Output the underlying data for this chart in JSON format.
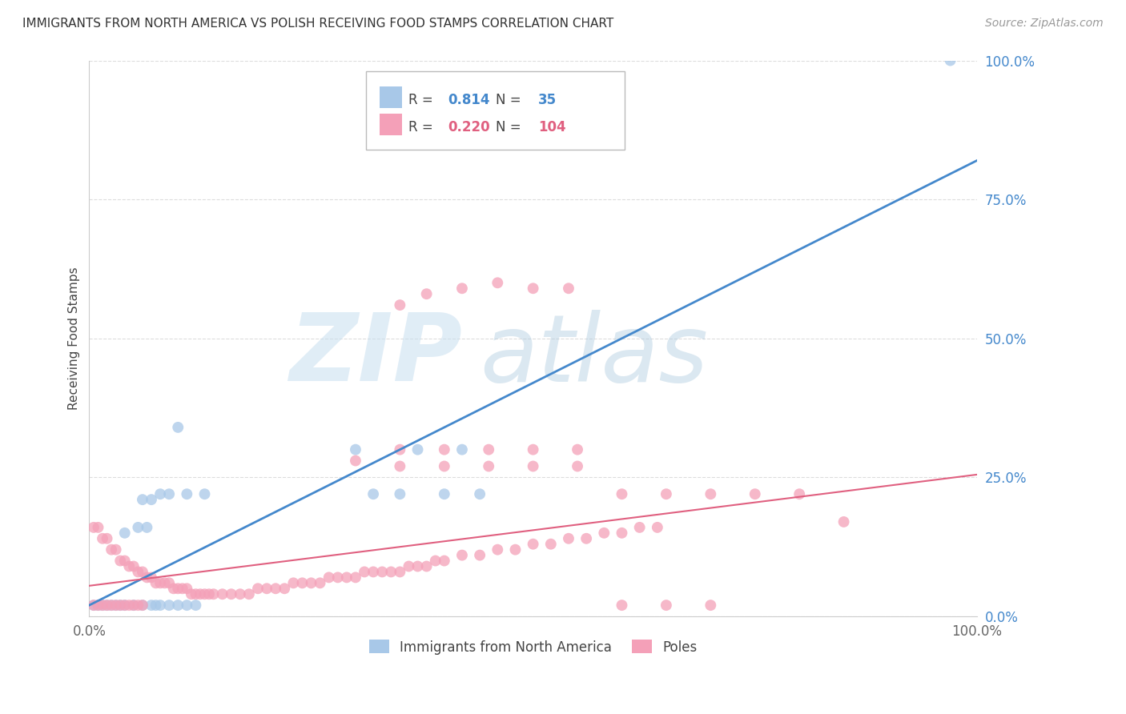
{
  "title": "IMMIGRANTS FROM NORTH AMERICA VS POLISH RECEIVING FOOD STAMPS CORRELATION CHART",
  "source": "Source: ZipAtlas.com",
  "ylabel": "Receiving Food Stamps",
  "series1_label": "Immigrants from North America",
  "series1_color": "#a8c8e8",
  "series1_line_color": "#4488cc",
  "series1_R": "0.814",
  "series1_N": "35",
  "series2_label": "Poles",
  "series2_color": "#f4a0b8",
  "series2_line_color": "#e06080",
  "series2_R": "0.220",
  "series2_N": "104",
  "grid_color": "#dddddd",
  "background_color": "#ffffff",
  "xlim": [
    0,
    1
  ],
  "ylim": [
    0,
    1
  ],
  "yticks": [
    0,
    0.25,
    0.5,
    0.75,
    1.0
  ],
  "ytick_labels": [
    "0.0%",
    "25.0%",
    "50.0%",
    "75.0%",
    "100.0%"
  ],
  "xtick_labels": [
    "0.0%",
    "100.0%"
  ],
  "blue_x": [
    0.005,
    0.01,
    0.015,
    0.02,
    0.025,
    0.03,
    0.035,
    0.04,
    0.04,
    0.05,
    0.055,
    0.06,
    0.065,
    0.07,
    0.075,
    0.08,
    0.09,
    0.1,
    0.11,
    0.12,
    0.06,
    0.07,
    0.08,
    0.09,
    0.1,
    0.11,
    0.13,
    0.3,
    0.32,
    0.35,
    0.37,
    0.4,
    0.42,
    0.44,
    0.97
  ],
  "blue_y": [
    0.02,
    0.02,
    0.02,
    0.02,
    0.02,
    0.02,
    0.02,
    0.02,
    0.15,
    0.02,
    0.16,
    0.02,
    0.16,
    0.02,
    0.02,
    0.02,
    0.02,
    0.02,
    0.02,
    0.02,
    0.21,
    0.21,
    0.22,
    0.22,
    0.34,
    0.22,
    0.22,
    0.3,
    0.22,
    0.22,
    0.3,
    0.22,
    0.3,
    0.22,
    1.0
  ],
  "pink_x": [
    0.005,
    0.005,
    0.01,
    0.01,
    0.015,
    0.015,
    0.02,
    0.02,
    0.025,
    0.025,
    0.03,
    0.03,
    0.035,
    0.035,
    0.04,
    0.04,
    0.045,
    0.045,
    0.05,
    0.05,
    0.055,
    0.055,
    0.06,
    0.06,
    0.065,
    0.07,
    0.075,
    0.08,
    0.085,
    0.09,
    0.095,
    0.1,
    0.105,
    0.11,
    0.115,
    0.12,
    0.125,
    0.13,
    0.135,
    0.14,
    0.15,
    0.16,
    0.17,
    0.18,
    0.19,
    0.2,
    0.21,
    0.22,
    0.23,
    0.24,
    0.25,
    0.26,
    0.27,
    0.28,
    0.29,
    0.3,
    0.31,
    0.32,
    0.33,
    0.34,
    0.35,
    0.36,
    0.37,
    0.38,
    0.39,
    0.4,
    0.42,
    0.44,
    0.46,
    0.48,
    0.5,
    0.52,
    0.54,
    0.56,
    0.58,
    0.6,
    0.62,
    0.64,
    0.3,
    0.35,
    0.4,
    0.45,
    0.5,
    0.55,
    0.35,
    0.38,
    0.42,
    0.46,
    0.5,
    0.54,
    0.6,
    0.65,
    0.7,
    0.75,
    0.8,
    0.85,
    0.35,
    0.4,
    0.45,
    0.5,
    0.55,
    0.6,
    0.65,
    0.7
  ],
  "pink_y": [
    0.16,
    0.02,
    0.16,
    0.02,
    0.14,
    0.02,
    0.14,
    0.02,
    0.12,
    0.02,
    0.12,
    0.02,
    0.1,
    0.02,
    0.1,
    0.02,
    0.09,
    0.02,
    0.09,
    0.02,
    0.08,
    0.02,
    0.08,
    0.02,
    0.07,
    0.07,
    0.06,
    0.06,
    0.06,
    0.06,
    0.05,
    0.05,
    0.05,
    0.05,
    0.04,
    0.04,
    0.04,
    0.04,
    0.04,
    0.04,
    0.04,
    0.04,
    0.04,
    0.04,
    0.05,
    0.05,
    0.05,
    0.05,
    0.06,
    0.06,
    0.06,
    0.06,
    0.07,
    0.07,
    0.07,
    0.07,
    0.08,
    0.08,
    0.08,
    0.08,
    0.08,
    0.09,
    0.09,
    0.09,
    0.1,
    0.1,
    0.11,
    0.11,
    0.12,
    0.12,
    0.13,
    0.13,
    0.14,
    0.14,
    0.15,
    0.15,
    0.16,
    0.16,
    0.28,
    0.27,
    0.27,
    0.27,
    0.27,
    0.27,
    0.56,
    0.58,
    0.59,
    0.6,
    0.59,
    0.59,
    0.22,
    0.22,
    0.22,
    0.22,
    0.22,
    0.17,
    0.3,
    0.3,
    0.3,
    0.3,
    0.3,
    0.02,
    0.02,
    0.02
  ],
  "blue_line_x0": 0.0,
  "blue_line_y0": 0.02,
  "blue_line_x1": 1.0,
  "blue_line_y1": 0.82,
  "pink_line_x0": 0.0,
  "pink_line_y0": 0.055,
  "pink_line_x1": 1.0,
  "pink_line_y1": 0.255
}
